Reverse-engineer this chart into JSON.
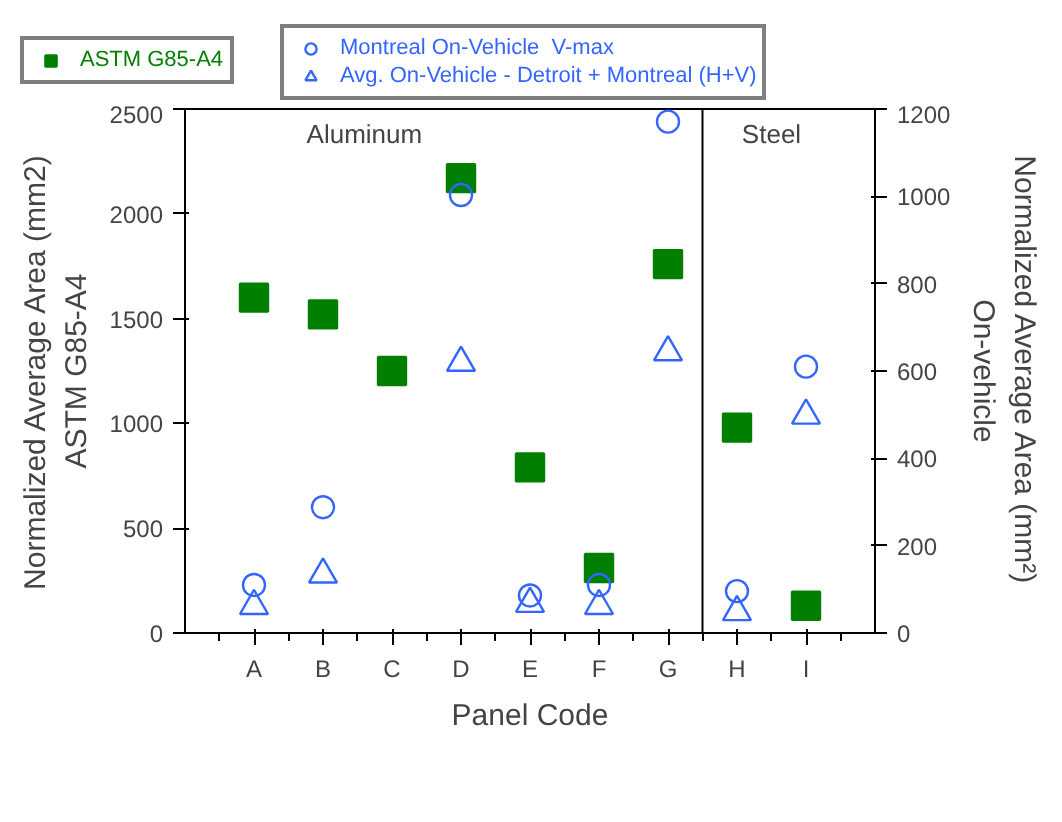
{
  "chart_data": {
    "type": "scatter",
    "xlabel": "Panel Code",
    "ylabel": "Normalized Average Area (mm2)\nASTM G85-A4",
    "y2label": "Normalized Average Area (mm²)\nOn-vehicle",
    "categories": [
      "A",
      "B",
      "C",
      "D",
      "E",
      "F",
      "G",
      "H",
      "I"
    ],
    "ylim": [
      0,
      2500
    ],
    "yticks": [
      0,
      500,
      1000,
      1500,
      2000,
      2500
    ],
    "y2lim": [
      0,
      1200
    ],
    "y2ticks": [
      0,
      200,
      400,
      600,
      800,
      1000,
      1200
    ],
    "grid": false,
    "legend": "top",
    "series": [
      {
        "name": "ASTM G85-A4",
        "color": "#007f00",
        "marker": "square",
        "values": [
          1600,
          1520,
          1250,
          2170,
          790,
          310,
          1760,
          980,
          130
        ]
      },
      {
        "name": "Montreal On-Vehicle  V-max",
        "color": "#3366ff",
        "marker": "circle",
        "axis": "y2",
        "values": [
          110,
          288,
          null,
          1003,
          86,
          110,
          1171,
          96,
          610
        ]
      },
      {
        "name": "Avg. On-Vehicle - Detroit + Montreal (H+V)",
        "color": "#3366ff",
        "marker": "triangle",
        "axis": "y2",
        "values": [
          62,
          134,
          null,
          619,
          67,
          62,
          643,
          48,
          498
        ]
      }
    ],
    "annotations": [
      "Aluminum",
      "Steel"
    ]
  }
}
